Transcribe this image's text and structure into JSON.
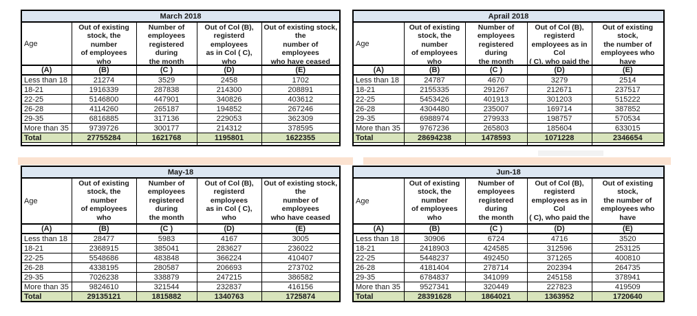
{
  "colors": {
    "title_fill": "#dce6f1",
    "total_fill": "#d8e4bc",
    "band_fill": "#fbe2d0",
    "artifact_fill": "#f2f2f2",
    "border_color": "#000000"
  },
  "column_letters": [
    "(A)",
    "(B)",
    "(C )",
    "(D)",
    "(E)"
  ],
  "tables": [
    {
      "title": "March 2018",
      "headers": {
        "age": "Age",
        "b": "Out of existing\nstock, the number\nof employees who\npaid contribution\nduring the month",
        "c": "Number of\nemployees\nregistered during\nthe month",
        "d": "Out of Col (B),\nregisterd employees\nas in Col ( C), who\npaid the contribution\nduring the month",
        "e": "Out of existing stock, the\nnumber of employees\nwho have ceased paying\ncontribution during the\nmonth"
      },
      "rows": [
        {
          "age": "Less than 18",
          "b": "21274",
          "c": "3529",
          "d": "2458",
          "e": "1702"
        },
        {
          "age": "18-21",
          "b": "1916339",
          "c": "287838",
          "d": "214300",
          "e": "208891"
        },
        {
          "age": "22-25",
          "b": "5146800",
          "c": "447901",
          "d": "340826",
          "e": "403612"
        },
        {
          "age": "26-28",
          "b": "4114260",
          "c": "265187",
          "d": "194852",
          "e": "267246"
        },
        {
          "age": "29-35",
          "b": "6816885",
          "c": "317136",
          "d": "229053",
          "e": "362309"
        },
        {
          "age": "More than 35",
          "b": "9739726",
          "c": "300177",
          "d": "214312",
          "e": "378595"
        }
      ],
      "total": {
        "label": "Total",
        "b": "27755284",
        "c": "1621768",
        "d": "1195801",
        "e": "1622355"
      }
    },
    {
      "title": "Aprail 2018",
      "headers": {
        "age": "Age",
        "b": "Out of existing\nstock, the number\nof employees who\npaid contribution\nduring the month",
        "c": "Number of\nemployees\nregistered during\nthe month",
        "d": "Out of Col (B),\nregisterd\nemployees as in Col\n( C), who paid the\ncontribution during",
        "e": "Out of existing stock,\nthe number of\nemployees who have\nceased paying\ncontribution during"
      },
      "rows": [
        {
          "age": "Less than 18",
          "b": "24787",
          "c": "4670",
          "d": "3279",
          "e": "2514"
        },
        {
          "age": "18-21",
          "b": "2155335",
          "c": "291267",
          "d": "212671",
          "e": "237517"
        },
        {
          "age": "22-25",
          "b": "5453426",
          "c": "401913",
          "d": "301203",
          "e": "515222"
        },
        {
          "age": "26-28",
          "b": "4304480",
          "c": "235007",
          "d": "169714",
          "e": "387852"
        },
        {
          "age": "29-35",
          "b": "6988974",
          "c": "279933",
          "d": "198757",
          "e": "570534"
        },
        {
          "age": "More than 35",
          "b": "9767236",
          "c": "265803",
          "d": "185604",
          "e": "633015"
        }
      ],
      "total": {
        "label": "Total",
        "b": "28694238",
        "c": "1478593",
        "d": "1071228",
        "e": "2346654"
      }
    },
    {
      "title": "May-18",
      "headers": {
        "age": "Age",
        "b": "Out of existing\nstock, the number\nof employees who\npaid contribution\nduring the month",
        "c": "Number of\nemployees\nregistered during\nthe month",
        "d": "Out of Col (B),\nregisterd employees\nas in Col ( C), who\npaid the contribution\nduring the month",
        "e": "Out of existing stock, the\nnumber of employees\nwho have ceased paying\ncontribution during the\nmonth"
      },
      "rows": [
        {
          "age": "Less than 18",
          "b": "28477",
          "c": "5983",
          "d": "4167",
          "e": "3005"
        },
        {
          "age": "18-21",
          "b": "2368915",
          "c": "385041",
          "d": "283627",
          "e": "236022"
        },
        {
          "age": "22-25",
          "b": "5548686",
          "c": "483848",
          "d": "366224",
          "e": "410407"
        },
        {
          "age": "26-28",
          "b": "4338195",
          "c": "280587",
          "d": "206693",
          "e": "273702"
        },
        {
          "age": "29-35",
          "b": "7026238",
          "c": "338879",
          "d": "247215",
          "e": "386582"
        },
        {
          "age": "More than 35",
          "b": "9824610",
          "c": "321544",
          "d": "232837",
          "e": "416156"
        }
      ],
      "total": {
        "label": "Total",
        "b": "29135121",
        "c": "1815882",
        "d": "1340763",
        "e": "1725874"
      }
    },
    {
      "title": "Jun-18",
      "headers": {
        "age": "Age",
        "b": "Out of existing\nstock, the number\nof employees who\npaid contribution\nduring the month",
        "c": "Number of\nemployees\nregistered during\nthe month",
        "d": "Out of Col (B),\nregisterd\nemployees as in Col\n( C), who paid the\ncontribution during",
        "e": "Out of existing stock,\nthe number of\nemployees who have\nceased paying\ncontribution during"
      },
      "rows": [
        {
          "age": "Less than 18",
          "b": "30906",
          "c": "6724",
          "d": "4716",
          "e": "3520"
        },
        {
          "age": "18-21",
          "b": "2418903",
          "c": "424585",
          "d": "312596",
          "e": "253125"
        },
        {
          "age": "22-25",
          "b": "5448237",
          "c": "492450",
          "d": "371265",
          "e": "400810"
        },
        {
          "age": "26-28",
          "b": "4181404",
          "c": "278714",
          "d": "202394",
          "e": "264735"
        },
        {
          "age": "29-35",
          "b": "6784837",
          "c": "341099",
          "d": "245158",
          "e": "378941"
        },
        {
          "age": "More than 35",
          "b": "9527341",
          "c": "320449",
          "d": "227823",
          "e": "419509"
        }
      ],
      "total": {
        "label": "Total",
        "b": "28391628",
        "c": "1864021",
        "d": "1363952",
        "e": "1720640"
      }
    }
  ]
}
